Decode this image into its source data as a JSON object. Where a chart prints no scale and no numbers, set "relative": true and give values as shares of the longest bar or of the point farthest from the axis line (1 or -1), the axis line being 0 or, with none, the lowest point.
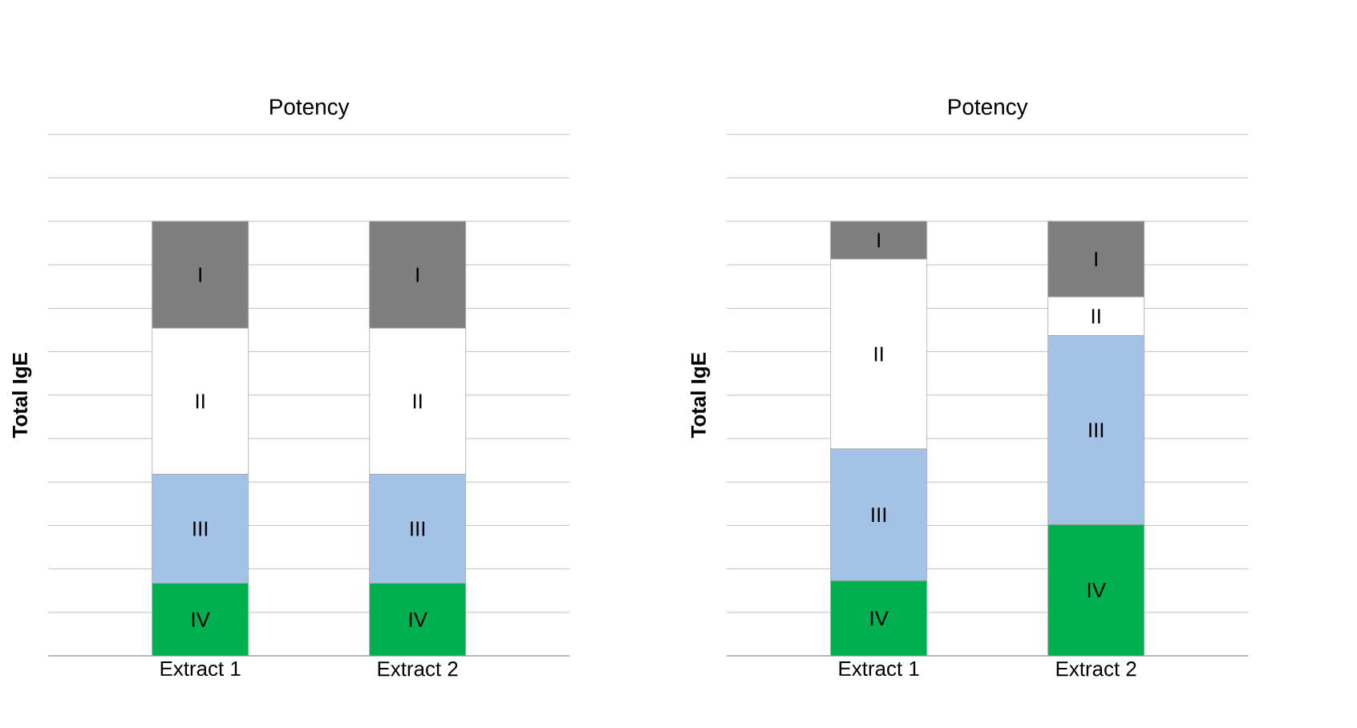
{
  "chart_data": [
    {
      "type": "bar",
      "title": "Potency",
      "ylabel": "Total IgE",
      "categories": [
        "Extract 1",
        "Extract 2"
      ],
      "stacked": true,
      "relative": true,
      "grid": "y",
      "series": [
        {
          "name": "IV",
          "color": "#00b050",
          "values": [
            0.167,
            0.167
          ]
        },
        {
          "name": "III",
          "color": "#a4c2e6",
          "values": [
            0.251,
            0.251
          ]
        },
        {
          "name": "II",
          "color": "#ffffff",
          "values": [
            0.336,
            0.336
          ]
        },
        {
          "name": "I",
          "color": "#7f7f7f",
          "values": [
            0.246,
            0.246
          ]
        }
      ]
    },
    {
      "type": "bar",
      "title": "Potency",
      "ylabel": "Total IgE",
      "categories": [
        "Extract 1",
        "Extract 2"
      ],
      "stacked": true,
      "relative": true,
      "grid": "y",
      "series": [
        {
          "name": "IV",
          "color": "#00b050",
          "values": [
            0.173,
            0.302
          ]
        },
        {
          "name": "III",
          "color": "#a4c2e6",
          "values": [
            0.303,
            0.435
          ]
        },
        {
          "name": "II",
          "color": "#ffffff",
          "values": [
            0.437,
            0.089
          ]
        },
        {
          "name": "I",
          "color": "#7f7f7f",
          "values": [
            0.087,
            0.174
          ]
        }
      ]
    }
  ]
}
